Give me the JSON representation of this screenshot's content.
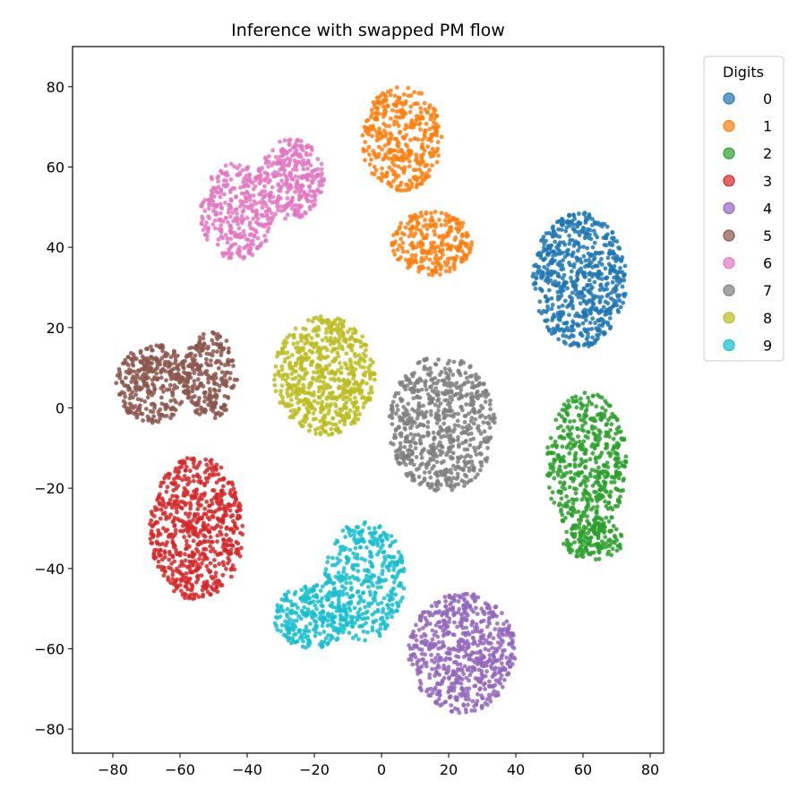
{
  "chart_data": {
    "type": "scatter",
    "title": "Inference with swapped PM flow",
    "xlabel": "",
    "ylabel": "",
    "xlim": [
      -92,
      84
    ],
    "ylim": [
      -86,
      90
    ],
    "xticks": [
      -80,
      -60,
      -40,
      -20,
      0,
      20,
      40,
      60,
      80
    ],
    "yticks": [
      -80,
      -60,
      -40,
      -20,
      0,
      20,
      40,
      60,
      80
    ],
    "xtick_labels": [
      "−80",
      "−60",
      "−40",
      "−20",
      "0",
      "20",
      "40",
      "60",
      "80"
    ],
    "ytick_labels": [
      "−80",
      "−60",
      "−40",
      "−20",
      "0",
      "20",
      "40",
      "60",
      "80"
    ],
    "grid": false,
    "legend": {
      "title": "Digits",
      "placement": "outside-top-right",
      "entries": [
        "0",
        "1",
        "2",
        "3",
        "4",
        "5",
        "6",
        "7",
        "8",
        "9"
      ]
    },
    "series": [
      {
        "name": "0",
        "color": "#1f77b4",
        "clusters": [
          {
            "cx": 59,
            "cy": 32,
            "rx": 14,
            "ry": 17,
            "n": 650
          }
        ]
      },
      {
        "name": "1",
        "color": "#ff7f0e",
        "clusters": [
          {
            "cx": 6,
            "cy": 67,
            "rx": 12,
            "ry": 13,
            "n": 380
          },
          {
            "cx": 15,
            "cy": 41,
            "rx": 12,
            "ry": 8,
            "n": 270
          }
        ]
      },
      {
        "name": "2",
        "color": "#2ca02c",
        "clusters": [
          {
            "cx": 61,
            "cy": -14,
            "rx": 12,
            "ry": 18,
            "n": 500
          },
          {
            "cx": 63,
            "cy": -33,
            "rx": 9,
            "ry": 5,
            "n": 140
          }
        ]
      },
      {
        "name": "3",
        "color": "#d62728",
        "clusters": [
          {
            "cx": -55,
            "cy": -30,
            "rx": 14,
            "ry": 18,
            "n": 650
          }
        ]
      },
      {
        "name": "4",
        "color": "#9467bd",
        "clusters": [
          {
            "cx": 24,
            "cy": -61,
            "rx": 16,
            "ry": 15,
            "n": 650
          }
        ]
      },
      {
        "name": "5",
        "color": "#8c564b",
        "clusters": [
          {
            "cx": -68,
            "cy": 6,
            "rx": 11,
            "ry": 10,
            "n": 320
          },
          {
            "cx": -51,
            "cy": 8,
            "rx": 8,
            "ry": 11,
            "n": 250
          }
        ]
      },
      {
        "name": "6",
        "color": "#e377c2",
        "clusters": [
          {
            "cx": -43,
            "cy": 49,
            "rx": 11,
            "ry": 12,
            "n": 320
          },
          {
            "cx": -27,
            "cy": 57,
            "rx": 10,
            "ry": 10,
            "n": 300
          }
        ]
      },
      {
        "name": "7",
        "color": "#7f7f7f",
        "clusters": [
          {
            "cx": 18,
            "cy": -4,
            "rx": 16,
            "ry": 17,
            "n": 650
          }
        ]
      },
      {
        "name": "8",
        "color": "#bcbd22",
        "clusters": [
          {
            "cx": -17,
            "cy": 8,
            "rx": 15,
            "ry": 15,
            "n": 640
          }
        ]
      },
      {
        "name": "9",
        "color": "#17becf",
        "clusters": [
          {
            "cx": -5,
            "cy": -43,
            "rx": 12,
            "ry": 15,
            "n": 380
          },
          {
            "cx": -21,
            "cy": -52,
            "rx": 11,
            "ry": 8,
            "n": 250
          }
        ]
      }
    ]
  }
}
